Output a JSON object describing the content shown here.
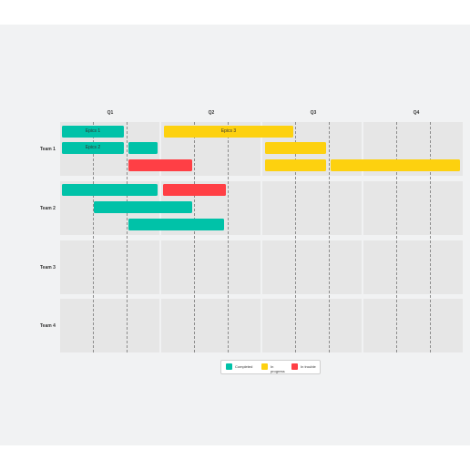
{
  "colors": {
    "completed": "#00c2a8",
    "in_progress": "#fdd10f",
    "late": "#ff3f45"
  },
  "quarters": [
    "Q1",
    "Q2",
    "Q3",
    "Q4"
  ],
  "teams": [
    "Team 1",
    "Team 2",
    "Team 3",
    "Team 4"
  ],
  "bars": [
    {
      "team": 1,
      "status": "completed",
      "label": "Epics 1"
    },
    {
      "team": 1,
      "status": "completed",
      "label": "Epics 2"
    },
    {
      "team": 1,
      "status": "completed",
      "label": ""
    },
    {
      "team": 1,
      "status": "late",
      "label": ""
    },
    {
      "team": 1,
      "status": "in_progress",
      "label": "Epics 3"
    },
    {
      "team": 1,
      "status": "in_progress",
      "label": ""
    },
    {
      "team": 1,
      "status": "in_progress",
      "label": ""
    },
    {
      "team": 1,
      "status": "in_progress",
      "label": ""
    },
    {
      "team": 2,
      "status": "completed",
      "label": ""
    },
    {
      "team": 2,
      "status": "late",
      "label": ""
    },
    {
      "team": 2,
      "status": "completed",
      "label": ""
    },
    {
      "team": 2,
      "status": "completed",
      "label": ""
    }
  ],
  "legend": {
    "completed": "Completed",
    "in_progress": "In progress",
    "late": "In trouble"
  }
}
